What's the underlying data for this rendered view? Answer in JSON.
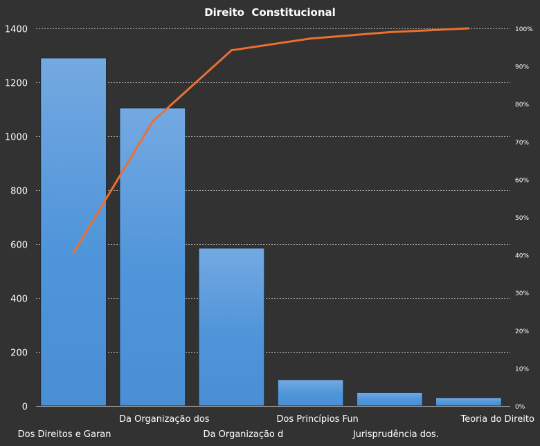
{
  "chart_data": {
    "type": "bar",
    "title": "Direito  Constitucional",
    "categories": [
      "Dos Direitos e Garan",
      "Da Organização dos",
      "Da Organização d",
      "Dos Princípios Fun",
      "Jurisprudência dos.",
      "Teoria do Direito  ."
    ],
    "series": [
      {
        "values": [
          1290,
          1105,
          585,
          97,
          50,
          30
        ]
      },
      {
        "values": [
          40.5,
          75.3,
          94.2,
          97.3,
          99.0,
          100.0
        ],
        "axis": "right",
        "type": "line"
      }
    ],
    "ylim": [
      0,
      1400
    ],
    "yticks": [
      0,
      200,
      400,
      600,
      800,
      1000,
      1200,
      1400
    ],
    "y2lim": [
      0,
      100
    ],
    "y2ticks": [
      "0%",
      "10%",
      "20%",
      "30%",
      "40%",
      "50%",
      "60%",
      "70%",
      "80%",
      "90%",
      "100%"
    ],
    "grid": true,
    "colors": {
      "background": "#333233",
      "bar": "#4a90d6",
      "bar_top": "#6fa6e0",
      "line": "#ec7030",
      "grid": "#bdbdbd",
      "text": "#ffffff"
    }
  }
}
